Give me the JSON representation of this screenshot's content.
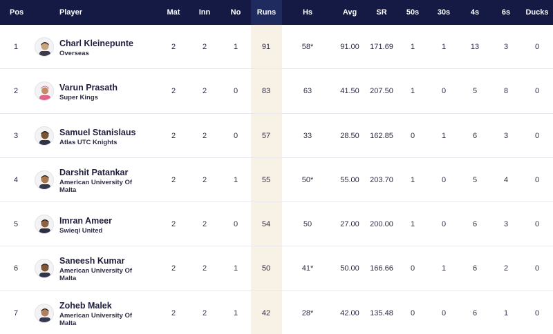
{
  "columns": {
    "pos": "Pos",
    "player": "Player",
    "mat": "Mat",
    "inn": "Inn",
    "no": "No",
    "runs": "Runs",
    "hs": "Hs",
    "avg": "Avg",
    "sr": "SR",
    "fifties": "50s",
    "thirties": "30s",
    "fours": "4s",
    "sixes": "6s",
    "ducks": "Ducks"
  },
  "colors": {
    "header_bg": "#151a45",
    "runs_highlight": "#f8f1e6",
    "accent_jersey_pink": "#e0648c"
  },
  "rows": [
    {
      "pos": "1",
      "name": "Charl Kleinepunte",
      "team": "Overseas",
      "mat": "2",
      "inn": "2",
      "no": "1",
      "runs": "91",
      "hs": "58*",
      "avg": "91.00",
      "sr": "171.69",
      "fifties": "1",
      "thirties": "1",
      "fours": "13",
      "sixes": "3",
      "ducks": "0",
      "avatar_icon": "player-avatar-icon"
    },
    {
      "pos": "2",
      "name": "Varun Prasath",
      "team": "Super Kings",
      "mat": "2",
      "inn": "2",
      "no": "0",
      "runs": "83",
      "hs": "63",
      "avg": "41.50",
      "sr": "207.50",
      "fifties": "1",
      "thirties": "0",
      "fours": "5",
      "sixes": "8",
      "ducks": "0",
      "avatar_icon": "player-avatar-icon"
    },
    {
      "pos": "3",
      "name": "Samuel Stanislaus",
      "team": "Atlas UTC Knights",
      "mat": "2",
      "inn": "2",
      "no": "0",
      "runs": "57",
      "hs": "33",
      "avg": "28.50",
      "sr": "162.85",
      "fifties": "0",
      "thirties": "1",
      "fours": "6",
      "sixes": "3",
      "ducks": "0",
      "avatar_icon": "player-avatar-icon"
    },
    {
      "pos": "4",
      "name": "Darshit Patankar",
      "team": "American University Of Malta",
      "mat": "2",
      "inn": "2",
      "no": "1",
      "runs": "55",
      "hs": "50*",
      "avg": "55.00",
      "sr": "203.70",
      "fifties": "1",
      "thirties": "0",
      "fours": "5",
      "sixes": "4",
      "ducks": "0",
      "avatar_icon": "player-avatar-icon"
    },
    {
      "pos": "5",
      "name": "Imran Ameer",
      "team": "Swieqi United",
      "mat": "2",
      "inn": "2",
      "no": "0",
      "runs": "54",
      "hs": "50",
      "avg": "27.00",
      "sr": "200.00",
      "fifties": "1",
      "thirties": "0",
      "fours": "6",
      "sixes": "3",
      "ducks": "0",
      "avatar_icon": "player-avatar-icon"
    },
    {
      "pos": "6",
      "name": "Saneesh Kumar",
      "team": "American University Of Malta",
      "mat": "2",
      "inn": "2",
      "no": "1",
      "runs": "50",
      "hs": "41*",
      "avg": "50.00",
      "sr": "166.66",
      "fifties": "0",
      "thirties": "1",
      "fours": "6",
      "sixes": "2",
      "ducks": "0",
      "avatar_icon": "player-avatar-icon"
    },
    {
      "pos": "7",
      "name": "Zoheb Malek",
      "team": "American University Of Malta",
      "mat": "2",
      "inn": "2",
      "no": "1",
      "runs": "42",
      "hs": "28*",
      "avg": "42.00",
      "sr": "135.48",
      "fifties": "0",
      "thirties": "0",
      "fours": "6",
      "sixes": "1",
      "ducks": "0",
      "avatar_icon": "player-avatar-icon"
    }
  ]
}
